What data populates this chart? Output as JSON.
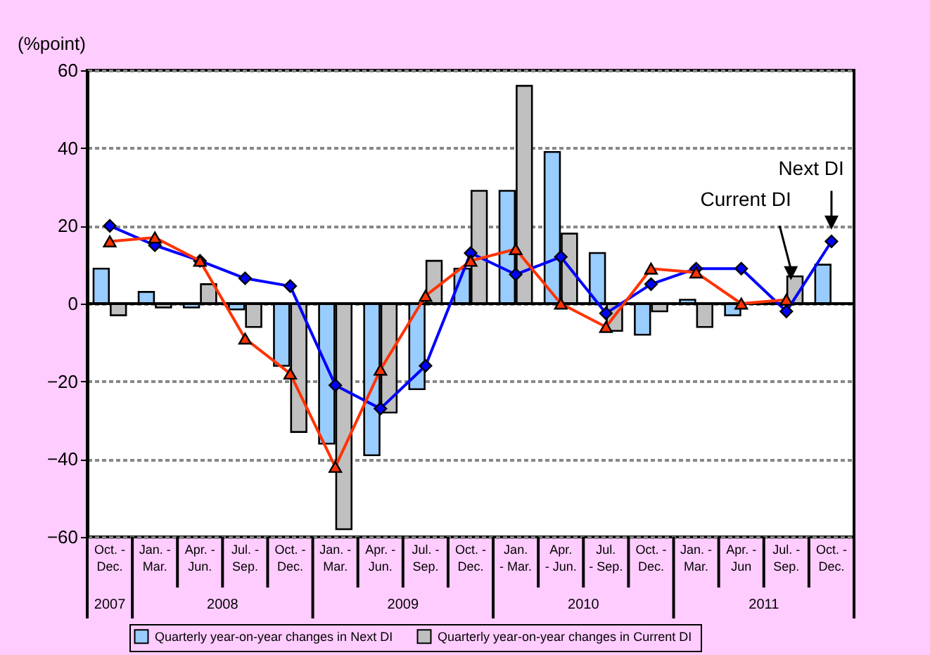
{
  "chart_data": {
    "type": "bar",
    "ylabel": "(%point)",
    "categories": [
      "Oct. -\nDec.",
      "Jan. -\nMar.",
      "Apr. -\nJun.",
      "Jul. -\nSep.",
      "Oct. -\nDec.",
      "Jan. -\nMar.",
      "Apr. -\nJun.",
      "Jul. -\nSep.",
      "Oct. -\nDec.",
      "Jan.\n- Mar.",
      "Apr.\n- Jun.",
      "Jul.\n- Sep.",
      "Oct. -\nDec.",
      "Jan. -\nMar.",
      "Apr. -\nJun",
      "Jul. -\nSep.",
      "Oct. -\nDec."
    ],
    "series": [
      {
        "name": "Quarterly year-on-year  changes in Next DI",
        "color": "#99ccff",
        "values": [
          9,
          3,
          -1,
          -1.5,
          -16,
          -36,
          -39,
          -22,
          9,
          29,
          39,
          13,
          -8,
          1,
          -3,
          null,
          10
        ]
      },
      {
        "name": "Quarterly year-on-year changes in Current  DI",
        "color": "#c0c0c0",
        "values": [
          -3,
          -1,
          5,
          -6,
          -33,
          -58,
          -28,
          11,
          29,
          56,
          18,
          -7,
          -2,
          -6,
          null,
          7,
          null
        ]
      },
      {
        "type": "line",
        "color": "#0000ff",
        "marker": "diamond",
        "values": [
          20,
          15,
          11,
          6.5,
          4.5,
          -21,
          -27,
          -16,
          13,
          7.5,
          12,
          -2.5,
          5,
          9,
          9,
          -2,
          16
        ]
      },
      {
        "type": "line",
        "color": "#ff3300",
        "marker": "triangle",
        "values": [
          16,
          17,
          11,
          -9,
          -18,
          -42,
          -17,
          2,
          11,
          14,
          0,
          -6,
          9,
          8,
          0,
          1,
          null
        ]
      }
    ],
    "ylim": [
      -60,
      60
    ],
    "yticks": [
      -60,
      -40,
      -20,
      0,
      20,
      40,
      60
    ],
    "grid": "y",
    "legend": "bottom",
    "ref_lines": [
      {
        "axis": "y",
        "value": 0,
        "color": "#000000"
      }
    ],
    "annotations": [
      "2007",
      "2008",
      "2009",
      "2010",
      "2011",
      "Current DI",
      "Next DI"
    ]
  }
}
